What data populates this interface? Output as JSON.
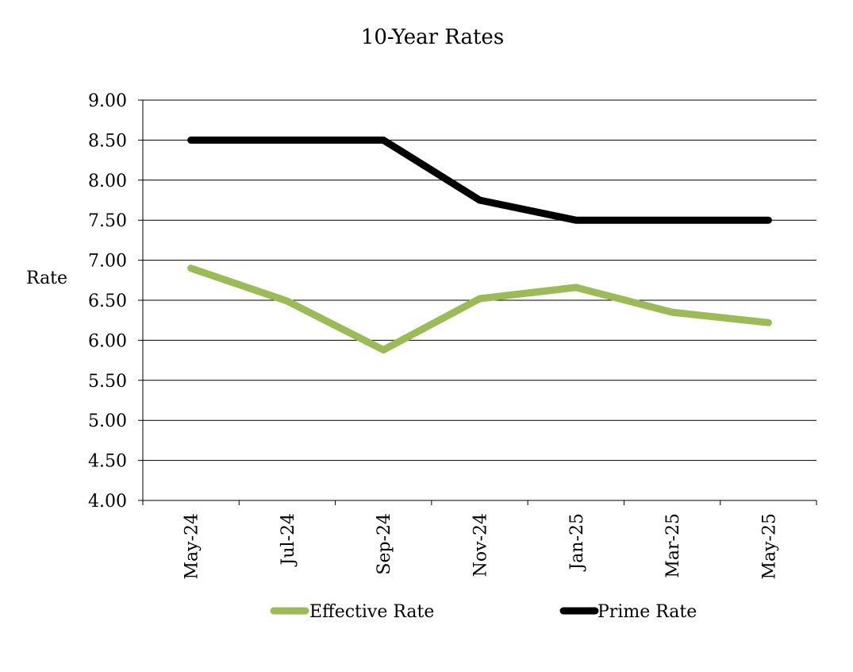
{
  "chart_data": {
    "type": "line",
    "title": "10-Year Rates",
    "ylabel": "Rate",
    "xlabel": "",
    "ylim": [
      4.0,
      9.0
    ],
    "yticks": [
      "4.00",
      "4.50",
      "5.00",
      "5.50",
      "6.00",
      "6.50",
      "7.00",
      "7.50",
      "8.00",
      "8.50",
      "9.00"
    ],
    "categories": [
      "May-24",
      "Jul-24",
      "Sep-24",
      "Nov-24",
      "Jan-25",
      "Mar-25",
      "May-25"
    ],
    "grid": true,
    "legend_position": "bottom",
    "series": [
      {
        "name": "Effective Rate",
        "color": "#9bbb59",
        "values": [
          6.9,
          6.49,
          5.88,
          6.52,
          6.66,
          6.35,
          6.22
        ]
      },
      {
        "name": "Prime Rate",
        "color": "#000000",
        "values": [
          8.5,
          8.5,
          8.5,
          7.75,
          7.5,
          7.5,
          7.5
        ]
      }
    ]
  }
}
